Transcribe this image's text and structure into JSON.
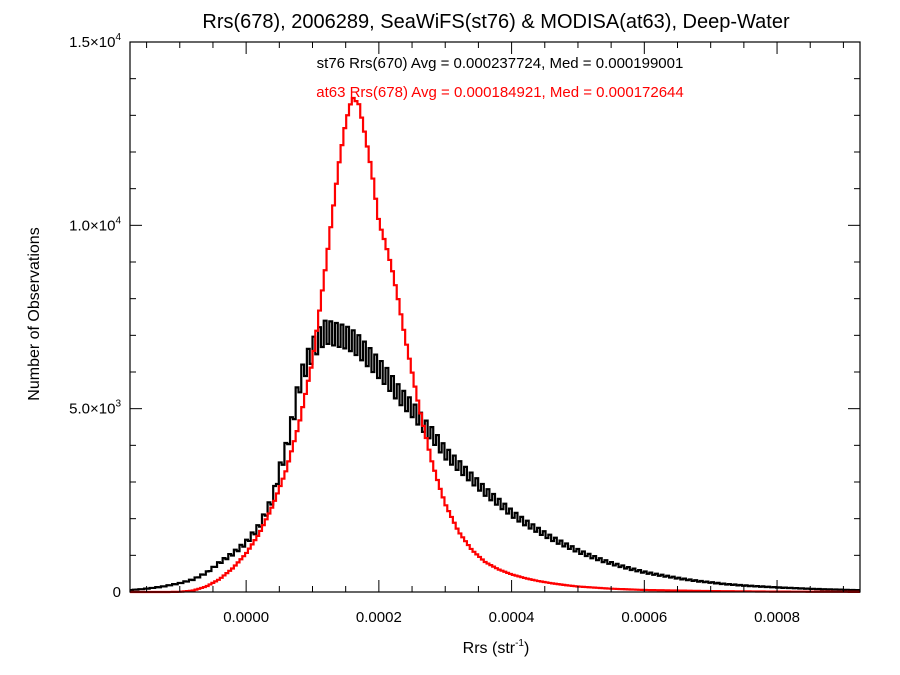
{
  "chart_data": {
    "type": "line",
    "style": "histogram-step",
    "title": "Rrs(678), 2006289, SeaWiFS(st76) & MODISA(at63), Deep-Water",
    "xlabel": {
      "base": "Rrs (str",
      "sup": "-1",
      "tail": ")"
    },
    "ylabel": "Number of Observations",
    "xlim": [
      -0.000175,
      0.000925
    ],
    "ylim": [
      0,
      15000
    ],
    "grid": false,
    "x_ticks": [
      {
        "value": 0.0,
        "label": "0.0000"
      },
      {
        "value": 0.0002,
        "label": "0.0002"
      },
      {
        "value": 0.0004,
        "label": "0.0004"
      },
      {
        "value": 0.0006,
        "label": "0.0006"
      },
      {
        "value": 0.0008,
        "label": "0.0008"
      }
    ],
    "y_ticks": [
      {
        "value": 0,
        "mantissa": "0",
        "exp": ""
      },
      {
        "value": 5000,
        "mantissa": "5.0×10",
        "exp": "3"
      },
      {
        "value": 10000,
        "mantissa": "1.0×10",
        "exp": "4"
      },
      {
        "value": 15000,
        "mantissa": "1.5×10",
        "exp": "4"
      }
    ],
    "annotations": [
      {
        "text": "st76 Rrs(670) Avg = 0.000237724, Med = 0.000199001",
        "color": "#000000"
      },
      {
        "text": "at63 Rrs(678) Avg = 0.000184921, Med = 0.000172644",
        "color": "#ff0000"
      }
    ],
    "series": [
      {
        "color": "#000000",
        "points": [
          [
            -0.000175,
            50
          ],
          [
            -0.00015,
            90
          ],
          [
            -0.000125,
            150
          ],
          [
            -0.0001,
            240
          ],
          [
            -8e-05,
            340
          ],
          [
            -6e-05,
            520
          ],
          [
            -4e-05,
            800
          ],
          [
            -2e-05,
            1050
          ],
          [
            0.0,
            1350
          ],
          [
            2e-05,
            1800
          ],
          [
            4e-05,
            2550
          ],
          [
            5e-05,
            3300
          ],
          [
            6e-05,
            3900
          ],
          [
            7e-05,
            4700
          ],
          [
            8e-05,
            5650
          ],
          [
            9e-05,
            6200
          ],
          [
            0.0001,
            6600
          ],
          [
            0.00011,
            6900
          ],
          [
            0.00012,
            7100
          ],
          [
            0.00013,
            7050
          ],
          [
            0.00014,
            7000
          ],
          [
            0.00015,
            6950
          ],
          [
            0.00016,
            6850
          ],
          [
            0.00017,
            6700
          ],
          [
            0.00018,
            6500
          ],
          [
            0.00019,
            6300
          ],
          [
            0.0002,
            6100
          ],
          [
            0.00021,
            5900
          ],
          [
            0.00022,
            5650
          ],
          [
            0.00023,
            5400
          ],
          [
            0.00024,
            5200
          ],
          [
            0.00025,
            5000
          ],
          [
            0.00026,
            4750
          ],
          [
            0.00027,
            4500
          ],
          [
            0.00028,
            4300
          ],
          [
            0.00029,
            4050
          ],
          [
            0.0003,
            3800
          ],
          [
            0.00032,
            3450
          ],
          [
            0.00034,
            3100
          ],
          [
            0.00036,
            2750
          ],
          [
            0.00038,
            2450
          ],
          [
            0.0004,
            2150
          ],
          [
            0.00042,
            1900
          ],
          [
            0.00044,
            1680
          ],
          [
            0.00046,
            1470
          ],
          [
            0.00048,
            1290
          ],
          [
            0.0005,
            1120
          ],
          [
            0.00052,
            970
          ],
          [
            0.00054,
            840
          ],
          [
            0.00056,
            730
          ],
          [
            0.00058,
            630
          ],
          [
            0.0006,
            540
          ],
          [
            0.00062,
            470
          ],
          [
            0.00064,
            410
          ],
          [
            0.00066,
            350
          ],
          [
            0.00068,
            300
          ],
          [
            0.0007,
            260
          ],
          [
            0.00072,
            220
          ],
          [
            0.00074,
            190
          ],
          [
            0.00076,
            165
          ],
          [
            0.00078,
            145
          ],
          [
            0.0008,
            125
          ],
          [
            0.00082,
            110
          ],
          [
            0.00084,
            95
          ],
          [
            0.00086,
            80
          ],
          [
            0.00088,
            70
          ],
          [
            0.0009,
            60
          ],
          [
            0.000925,
            50
          ]
        ]
      },
      {
        "color": "#ff0000",
        "points": [
          [
            -0.00012,
            0
          ],
          [
            -0.0001,
            5
          ],
          [
            -8e-05,
            40
          ],
          [
            -6e-05,
            150
          ],
          [
            -4e-05,
            350
          ],
          [
            -2e-05,
            650
          ],
          [
            0.0,
            1050
          ],
          [
            2e-05,
            1600
          ],
          [
            4e-05,
            2350
          ],
          [
            6e-05,
            3300
          ],
          [
            8e-05,
            4600
          ],
          [
            0.0001,
            6300
          ],
          [
            0.00011,
            7600
          ],
          [
            0.00012,
            8900
          ],
          [
            0.00013,
            10300
          ],
          [
            0.00014,
            11700
          ],
          [
            0.00015,
            12800
          ],
          [
            0.00016,
            13500
          ],
          [
            0.00017,
            13300
          ],
          [
            0.00018,
            12400
          ],
          [
            0.00019,
            11400
          ],
          [
            0.0002,
            10100
          ],
          [
            0.00021,
            9500
          ],
          [
            0.00022,
            8800
          ],
          [
            0.00023,
            7900
          ],
          [
            0.00024,
            6900
          ],
          [
            0.00025,
            6000
          ],
          [
            0.00026,
            5100
          ],
          [
            0.00027,
            4300
          ],
          [
            0.00028,
            3550
          ],
          [
            0.00029,
            2950
          ],
          [
            0.0003,
            2400
          ],
          [
            0.00032,
            1650
          ],
          [
            0.00034,
            1150
          ],
          [
            0.00036,
            820
          ],
          [
            0.00038,
            620
          ],
          [
            0.0004,
            480
          ],
          [
            0.00042,
            380
          ],
          [
            0.00044,
            300
          ],
          [
            0.00046,
            240
          ],
          [
            0.00048,
            190
          ],
          [
            0.0005,
            150
          ],
          [
            0.00055,
            90
          ],
          [
            0.0006,
            55
          ],
          [
            0.0007,
            25
          ],
          [
            0.0008,
            10
          ],
          [
            0.0009,
            5
          ],
          [
            0.000925,
            3
          ]
        ]
      }
    ]
  }
}
